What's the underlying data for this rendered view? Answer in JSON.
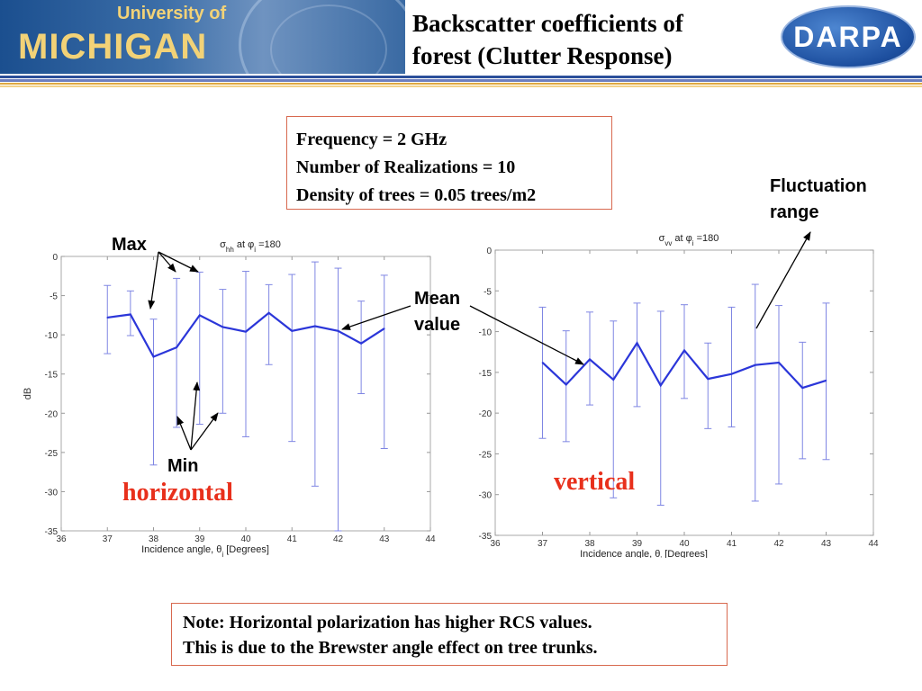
{
  "header": {
    "university_line": "University of",
    "michigan": "MICHIGAN",
    "title_line1": "Backscatter coefficients of",
    "title_line2": "forest (Clutter Response)",
    "darpa_logo": "DARPA"
  },
  "info_box": {
    "lines": [
      "Frequency = 2 GHz",
      "Number of Realizations = 10",
      "Density of trees = 0.05 trees/m2"
    ]
  },
  "callouts": {
    "max": "Max",
    "min": "Min",
    "mean_line1": "Mean",
    "mean_line2": "value",
    "fluct_line1": "Fluctuation",
    "fluct_line2": "range",
    "horizontal": "horizontal",
    "vertical": "vertical"
  },
  "note": {
    "line1": "Note: Horizontal polarization has higher RCS values.",
    "line2": "This is due to the Brewster angle effect on tree trunks."
  },
  "colors": {
    "line": "#2b36d9",
    "errorbar": "#7f86e3",
    "accent_red": "#e8301c",
    "box_border": "#d8694f"
  },
  "chart_data": [
    {
      "type": "line",
      "title": "σ°hh at φi =180",
      "title_sym": "σ",
      "title_sub": "hh",
      "title_rest": " at φ",
      "title_sub2": "i",
      "title_end": " =180",
      "xlabel": "Incidence angle, θi [Degrees]",
      "xlabel_main": "Incidence angle, θ",
      "xlabel_sub": "i",
      "xlabel_end": " [Degrees]",
      "ylabel": "dB",
      "xlim": [
        36,
        44
      ],
      "ylim": [
        -35,
        0
      ],
      "xticks": [
        36,
        37,
        38,
        39,
        40,
        41,
        42,
        43,
        44
      ],
      "yticks": [
        0,
        -5,
        -10,
        -15,
        -20,
        -25,
        -30,
        -35
      ],
      "x": [
        37,
        37.5,
        38,
        38.5,
        39,
        39.5,
        40,
        40.5,
        41,
        41.5,
        42,
        42.5,
        43
      ],
      "mean": [
        -7.8,
        -7.4,
        -12.8,
        -11.6,
        -7.5,
        -9.0,
        -9.6,
        -7.2,
        -9.5,
        -8.9,
        -9.5,
        -11.1,
        -9.2
      ],
      "max": [
        -3.7,
        -4.4,
        -8.0,
        -2.8,
        -2.0,
        -4.2,
        -1.9,
        -3.6,
        -2.3,
        -0.7,
        -1.5,
        -5.7,
        -2.4
      ],
      "min": [
        -12.4,
        -10.1,
        -26.6,
        -21.8,
        -21.4,
        -20.0,
        -23.0,
        -13.8,
        -23.6,
        -29.3,
        -35.0,
        -17.5,
        -24.5
      ]
    },
    {
      "type": "line",
      "title": "σ°vv at φi =180",
      "title_sym": "σ",
      "title_sub": "vv",
      "title_rest": " at φ",
      "title_sub2": "i",
      "title_end": " =180",
      "xlabel": "Incidence angle, θi [Degrees]",
      "xlabel_main": "Incidence angle, θ",
      "xlabel_sub": "i",
      "xlabel_end": " [Degrees]",
      "ylabel": "",
      "xlim": [
        36,
        44
      ],
      "ylim": [
        -35,
        0
      ],
      "xticks": [
        36,
        37,
        38,
        39,
        40,
        41,
        42,
        43,
        44
      ],
      "yticks": [
        0,
        -5,
        -10,
        -15,
        -20,
        -25,
        -30,
        -35
      ],
      "x": [
        37,
        37.5,
        38,
        38.5,
        39,
        39.5,
        40,
        40.5,
        41,
        41.5,
        42,
        42.5,
        43
      ],
      "mean": [
        -13.8,
        -16.5,
        -13.4,
        -15.9,
        -11.4,
        -16.6,
        -12.3,
        -15.8,
        -15.2,
        -14.1,
        -13.8,
        -16.9,
        -16.0
      ],
      "max": [
        -7.0,
        -9.9,
        -7.6,
        -8.7,
        -6.5,
        -7.5,
        -6.7,
        -11.4,
        -7.0,
        -4.2,
        -6.8,
        -11.3,
        -6.5
      ],
      "min": [
        -23.1,
        -23.5,
        -19.0,
        -30.4,
        -19.2,
        -31.3,
        -18.2,
        -21.9,
        -21.7,
        -30.8,
        -28.7,
        -25.6,
        -25.7
      ]
    }
  ]
}
